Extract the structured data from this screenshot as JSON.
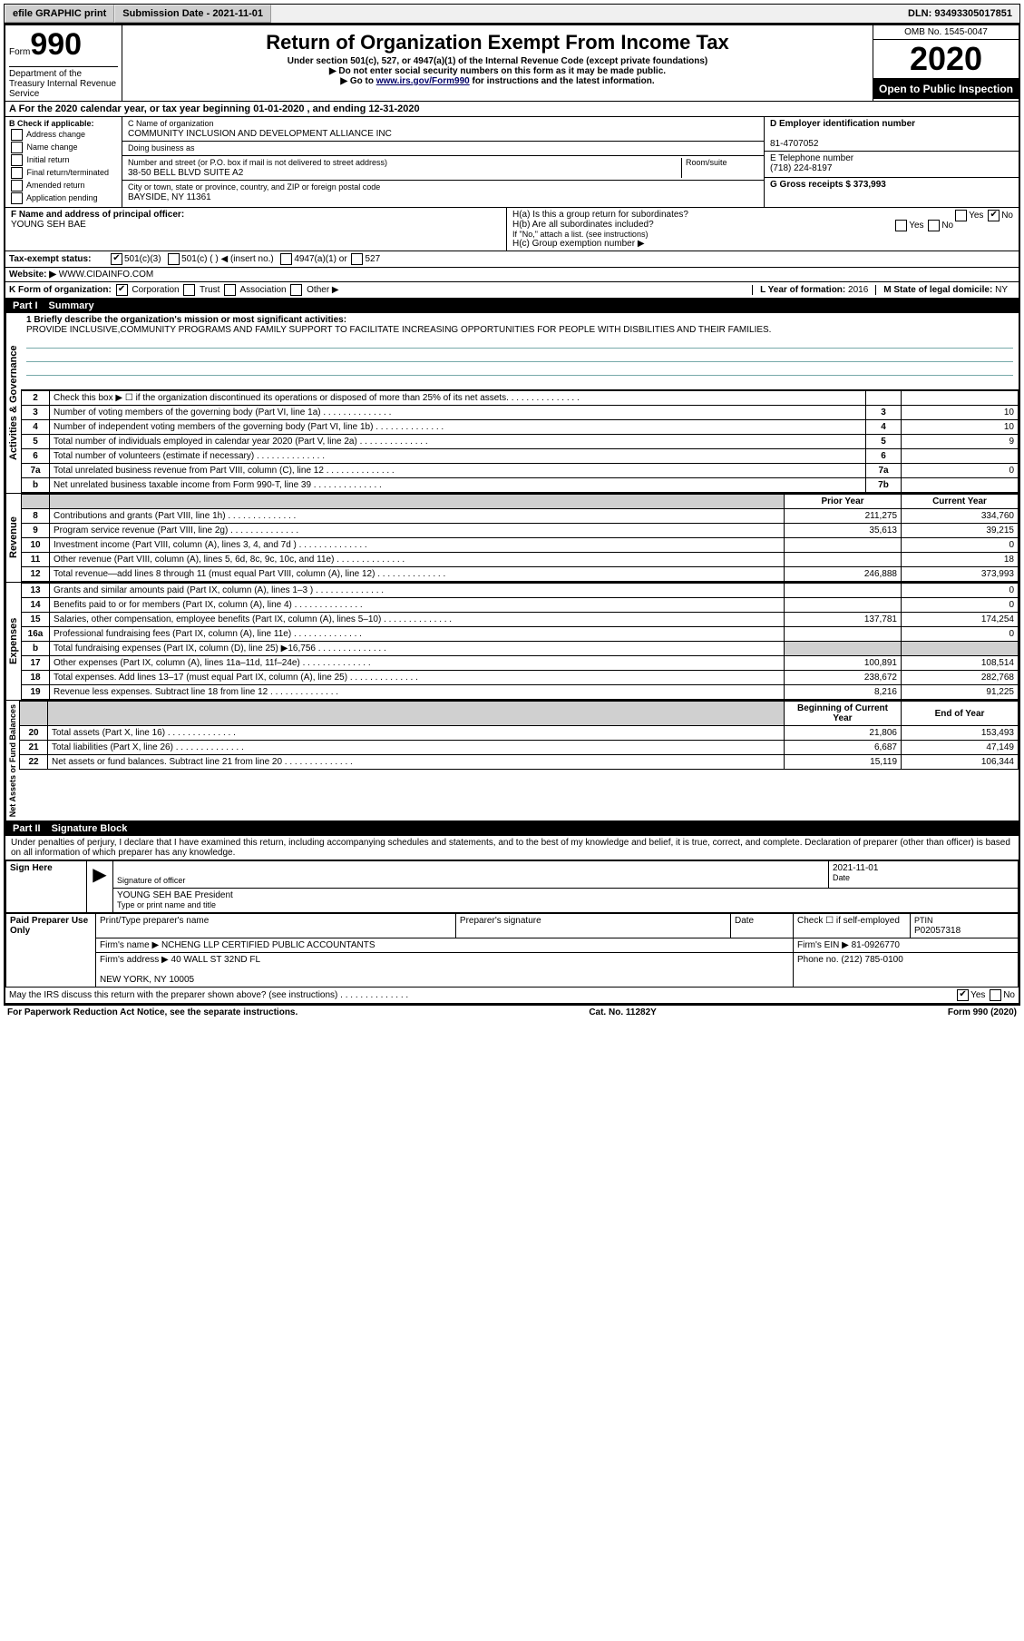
{
  "top_bar": {
    "efile": "efile GRAPHIC print",
    "submission_label": "Submission Date - 2021-11-01",
    "dln": "DLN: 93493305017851"
  },
  "header": {
    "form_word": "Form",
    "form_num": "990",
    "title": "Return of Organization Exempt From Income Tax",
    "sub1": "Under section 501(c), 527, or 4947(a)(1) of the Internal Revenue Code (except private foundations)",
    "sub2": "▶ Do not enter social security numbers on this form as it may be made public.",
    "sub3_pre": "▶ Go to ",
    "sub3_link": "www.irs.gov/Form990",
    "sub3_post": " for instructions and the latest information.",
    "omb": "OMB No. 1545-0047",
    "year": "2020",
    "open": "Open to Public Inspection",
    "dept": "Department of the Treasury Internal Revenue Service"
  },
  "line_a": "A For the 2020 calendar year, or tax year beginning 01-01-2020   , and ending 12-31-2020",
  "box_b": {
    "title": "B Check if applicable:",
    "opts": [
      "Address change",
      "Name change",
      "Initial return",
      "Final return/terminated",
      "Amended return",
      "Application pending"
    ]
  },
  "box_c": {
    "name_label": "C Name of organization",
    "name": "COMMUNITY INCLUSION AND DEVELOPMENT ALLIANCE INC",
    "dba_label": "Doing business as",
    "addr_label": "Number and street (or P.O. box if mail is not delivered to street address)",
    "room_label": "Room/suite",
    "addr": "38-50 BELL BLVD SUITE A2",
    "city_label": "City or town, state or province, country, and ZIP or foreign postal code",
    "city": "BAYSIDE, NY  11361"
  },
  "box_d": {
    "label": "D Employer identification number",
    "val": "81-4707052"
  },
  "box_e": {
    "label": "E Telephone number",
    "val": "(718) 224-8197"
  },
  "box_g": {
    "label": "G Gross receipts $ 373,993"
  },
  "box_f": {
    "label": "F  Name and address of principal officer:",
    "val": "YOUNG SEH BAE"
  },
  "box_h": {
    "a": "H(a)  Is this a group return for subordinates?",
    "b": "H(b)  Are all subordinates included?",
    "note": "If \"No,\" attach a list. (see instructions)",
    "c": "H(c)  Group exemption number ▶"
  },
  "line_i": "Tax-exempt status:",
  "line_i_opts": [
    "501(c)(3)",
    "501(c) (  ) ◀ (insert no.)",
    "4947(a)(1) or",
    "527"
  ],
  "line_j": {
    "label": "Website: ▶",
    "val": "WWW.CIDAINFO.COM"
  },
  "line_k": "K Form of organization:",
  "line_k_opts": [
    "Corporation",
    "Trust",
    "Association",
    "Other ▶"
  ],
  "line_l": {
    "label": "L Year of formation: ",
    "val": "2016"
  },
  "line_m": {
    "label": "M State of legal domicile: ",
    "val": "NY"
  },
  "part1": {
    "num": "Part I",
    "title": "Summary"
  },
  "mission_label": "1  Briefly describe the organization's mission or most significant activities:",
  "mission": "PROVIDE INCLUSIVE,COMMUNITY PROGRAMS AND FAMILY SUPPORT TO FACILITATE INCREASING OPPORTUNITIES FOR PEOPLE WITH DISBILITIES AND THEIR FAMILIES.",
  "governance_rows": [
    {
      "n": "2",
      "t": "Check this box ▶ ☐  if the organization discontinued its operations or disposed of more than 25% of its net assets.",
      "box": "",
      "v": ""
    },
    {
      "n": "3",
      "t": "Number of voting members of the governing body (Part VI, line 1a)",
      "box": "3",
      "v": "10"
    },
    {
      "n": "4",
      "t": "Number of independent voting members of the governing body (Part VI, line 1b)",
      "box": "4",
      "v": "10"
    },
    {
      "n": "5",
      "t": "Total number of individuals employed in calendar year 2020 (Part V, line 2a)",
      "box": "5",
      "v": "9"
    },
    {
      "n": "6",
      "t": "Total number of volunteers (estimate if necessary)",
      "box": "6",
      "v": ""
    },
    {
      "n": "7a",
      "t": "Total unrelated business revenue from Part VIII, column (C), line 12",
      "box": "7a",
      "v": "0"
    },
    {
      "n": "b",
      "t": "Net unrelated business taxable income from Form 990-T, line 39",
      "box": "7b",
      "v": ""
    }
  ],
  "col_headers": {
    "py": "Prior Year",
    "cy": "Current Year",
    "bcy": "Beginning of Current Year",
    "eoy": "End of Year"
  },
  "revenue_rows": [
    {
      "n": "8",
      "t": "Contributions and grants (Part VIII, line 1h)",
      "py": "211,275",
      "cy": "334,760"
    },
    {
      "n": "9",
      "t": "Program service revenue (Part VIII, line 2g)",
      "py": "35,613",
      "cy": "39,215"
    },
    {
      "n": "10",
      "t": "Investment income (Part VIII, column (A), lines 3, 4, and 7d )",
      "py": "",
      "cy": "0"
    },
    {
      "n": "11",
      "t": "Other revenue (Part VIII, column (A), lines 5, 6d, 8c, 9c, 10c, and 11e)",
      "py": "",
      "cy": "18"
    },
    {
      "n": "12",
      "t": "Total revenue—add lines 8 through 11 (must equal Part VIII, column (A), line 12)",
      "py": "246,888",
      "cy": "373,993"
    }
  ],
  "expense_rows": [
    {
      "n": "13",
      "t": "Grants and similar amounts paid (Part IX, column (A), lines 1–3 )",
      "py": "",
      "cy": "0"
    },
    {
      "n": "14",
      "t": "Benefits paid to or for members (Part IX, column (A), line 4)",
      "py": "",
      "cy": "0"
    },
    {
      "n": "15",
      "t": "Salaries, other compensation, employee benefits (Part IX, column (A), lines 5–10)",
      "py": "137,781",
      "cy": "174,254"
    },
    {
      "n": "16a",
      "t": "Professional fundraising fees (Part IX, column (A), line 11e)",
      "py": "",
      "cy": "0"
    },
    {
      "n": "b",
      "t": "Total fundraising expenses (Part IX, column (D), line 25) ▶16,756",
      "py": "GREY",
      "cy": "GREY"
    },
    {
      "n": "17",
      "t": "Other expenses (Part IX, column (A), lines 11a–11d, 11f–24e)",
      "py": "100,891",
      "cy": "108,514"
    },
    {
      "n": "18",
      "t": "Total expenses. Add lines 13–17 (must equal Part IX, column (A), line 25)",
      "py": "238,672",
      "cy": "282,768"
    },
    {
      "n": "19",
      "t": "Revenue less expenses. Subtract line 18 from line 12",
      "py": "8,216",
      "cy": "91,225"
    }
  ],
  "net_rows": [
    {
      "n": "20",
      "t": "Total assets (Part X, line 16)",
      "py": "21,806",
      "cy": "153,493"
    },
    {
      "n": "21",
      "t": "Total liabilities (Part X, line 26)",
      "py": "6,687",
      "cy": "47,149"
    },
    {
      "n": "22",
      "t": "Net assets or fund balances. Subtract line 21 from line 20",
      "py": "15,119",
      "cy": "106,344"
    }
  ],
  "section_labels": {
    "gov": "Activities & Governance",
    "rev": "Revenue",
    "exp": "Expenses",
    "net": "Net Assets or Fund Balances"
  },
  "part2": {
    "num": "Part II",
    "title": "Signature Block"
  },
  "part2_text": "Under penalties of perjury, I declare that I have examined this return, including accompanying schedules and statements, and to the best of my knowledge and belief, it is true, correct, and complete. Declaration of preparer (other than officer) is based on all information of which preparer has any knowledge.",
  "sign": {
    "here": "Sign Here",
    "sig_officer": "Signature of officer",
    "date": "2021-11-01",
    "date_label": "Date",
    "name": "YOUNG SEH BAE President",
    "name_label": "Type or print name and title"
  },
  "paid": {
    "label": "Paid Preparer Use Only",
    "print_label": "Print/Type preparer's name",
    "sig_label": "Preparer's signature",
    "date_label": "Date",
    "check_label": "Check ☐ if self-employed",
    "ptin_label": "PTIN",
    "ptin": "P02057318",
    "firm_name_label": "Firm's name   ▶",
    "firm_name": "NCHENG LLP CERTIFIED PUBLIC ACCOUNTANTS",
    "firm_ein_label": "Firm's EIN ▶",
    "firm_ein": "81-0926770",
    "firm_addr_label": "Firm's address ▶",
    "firm_addr1": "40 WALL ST 32ND FL",
    "firm_addr2": "NEW YORK, NY  10005",
    "phone_label": "Phone no.",
    "phone": "(212) 785-0100"
  },
  "discuss": "May the IRS discuss this return with the preparer shown above? (see instructions)",
  "footer": {
    "left": "For Paperwork Reduction Act Notice, see the separate instructions.",
    "mid": "Cat. No. 11282Y",
    "right": "Form 990 (2020)"
  }
}
